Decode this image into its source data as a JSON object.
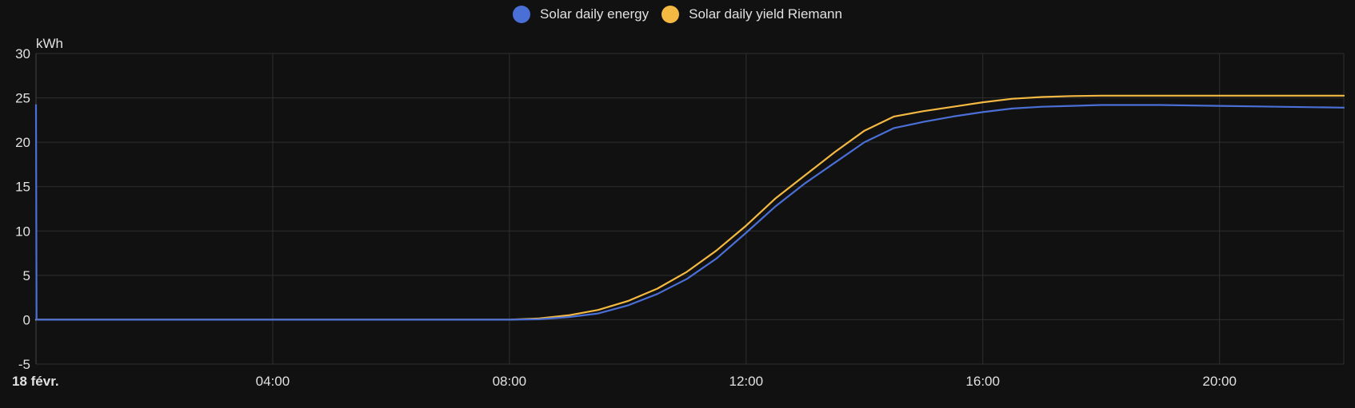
{
  "chart_data": {
    "type": "line",
    "ylabel": "kWh",
    "ylim": [
      -5,
      30
    ],
    "y_ticks": [
      "30",
      "25",
      "20",
      "15",
      "10",
      "5",
      "0",
      "-5"
    ],
    "y_tick_values": [
      30,
      25,
      20,
      15,
      10,
      5,
      0,
      -5
    ],
    "xlim": [
      0,
      22.1
    ],
    "x_ticks": [
      {
        "label": "18 févr.",
        "hour": 0,
        "bold": true
      },
      {
        "label": "04:00",
        "hour": 4
      },
      {
        "label": "08:00",
        "hour": 8
      },
      {
        "label": "12:00",
        "hour": 12
      },
      {
        "label": "16:00",
        "hour": 16
      },
      {
        "label": "20:00",
        "hour": 20
      }
    ],
    "grid": true,
    "legend_position": "top-center",
    "series": [
      {
        "name": "Solar daily energy",
        "color": "#4a6fd6",
        "points": [
          [
            0,
            24.2
          ],
          [
            0.01,
            0
          ],
          [
            4,
            0
          ],
          [
            8,
            0
          ],
          [
            8.5,
            0.05
          ],
          [
            9,
            0.3
          ],
          [
            9.5,
            0.7
          ],
          [
            10,
            1.6
          ],
          [
            10.5,
            2.9
          ],
          [
            11,
            4.6
          ],
          [
            11.5,
            6.9
          ],
          [
            12,
            9.8
          ],
          [
            12.5,
            12.8
          ],
          [
            13,
            15.4
          ],
          [
            13.5,
            17.7
          ],
          [
            14,
            20.0
          ],
          [
            14.5,
            21.6
          ],
          [
            15,
            22.3
          ],
          [
            15.5,
            22.9
          ],
          [
            16,
            23.4
          ],
          [
            16.5,
            23.8
          ],
          [
            17,
            24.0
          ],
          [
            17.5,
            24.1
          ],
          [
            18,
            24.2
          ],
          [
            19,
            24.2
          ],
          [
            20,
            24.1
          ],
          [
            21,
            24.0
          ],
          [
            22.1,
            23.9
          ]
        ]
      },
      {
        "name": "Solar daily yield Riemann",
        "color": "#f4b942",
        "points": [
          [
            0,
            0
          ],
          [
            4,
            0
          ],
          [
            8,
            0
          ],
          [
            8.5,
            0.15
          ],
          [
            9,
            0.5
          ],
          [
            9.5,
            1.1
          ],
          [
            10,
            2.1
          ],
          [
            10.5,
            3.5
          ],
          [
            11,
            5.4
          ],
          [
            11.5,
            7.8
          ],
          [
            12,
            10.6
          ],
          [
            12.5,
            13.7
          ],
          [
            13,
            16.3
          ],
          [
            13.5,
            18.9
          ],
          [
            14,
            21.3
          ],
          [
            14.5,
            22.9
          ],
          [
            15,
            23.5
          ],
          [
            15.5,
            24.0
          ],
          [
            16,
            24.5
          ],
          [
            16.5,
            24.9
          ],
          [
            17,
            25.1
          ],
          [
            17.5,
            25.2
          ],
          [
            18,
            25.25
          ],
          [
            19,
            25.25
          ],
          [
            20,
            25.25
          ],
          [
            21,
            25.25
          ],
          [
            22.1,
            25.25
          ]
        ]
      }
    ]
  }
}
